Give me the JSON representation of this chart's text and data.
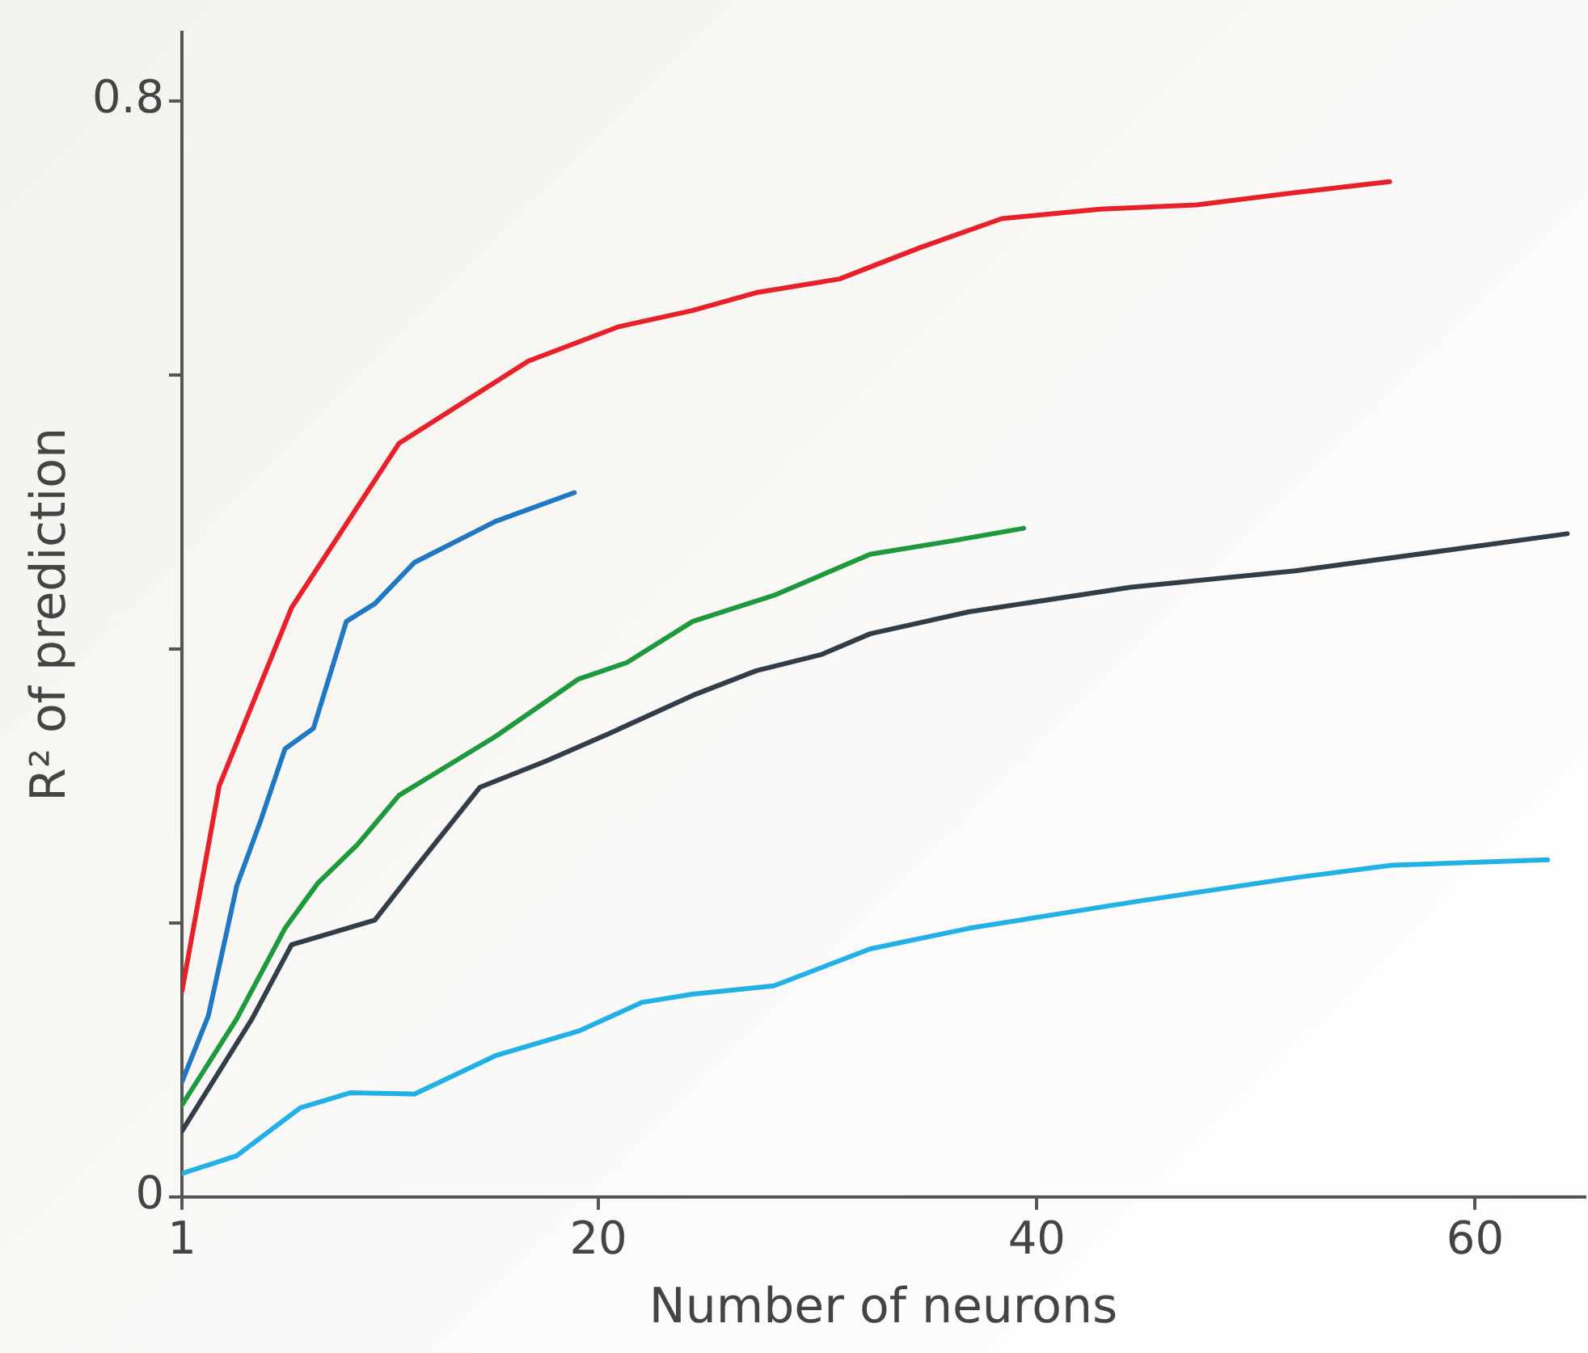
{
  "chart_data": {
    "type": "line",
    "xlabel": "Number of neurons",
    "ylabel": "R² of prediction",
    "xlim": [
      1,
      65
    ],
    "xticks": [
      1,
      20,
      40,
      60
    ],
    "ylim": [
      0,
      0.85
    ],
    "yticks": [
      0,
      {
        "value": 0.2,
        "label": null
      },
      {
        "value": 0.4,
        "label": null
      },
      {
        "value": 0.6,
        "label": null
      },
      0.8
    ],
    "grid": false,
    "legend": false,
    "marker": "none",
    "line_style": "solid",
    "series": [
      {
        "color": "#e8202a",
        "x": [
          1,
          2.7,
          6,
          10.9,
          16.8,
          20.9,
          24.3,
          27.2,
          31,
          34.7,
          38.4,
          42.9,
          47.3,
          51.8,
          56.1
        ],
        "values": [
          0.15,
          0.3,
          0.43,
          0.55,
          0.61,
          0.635,
          0.647,
          0.66,
          0.67,
          0.693,
          0.714,
          0.721,
          0.724,
          0.733,
          0.741
        ]
      },
      {
        "color": "#1f78c1",
        "x": [
          1,
          2.2,
          3.5,
          4.6,
          5.7,
          7,
          8.5,
          9.8,
          11.6,
          15.3,
          18.9
        ],
        "values": [
          0.084,
          0.132,
          0.227,
          0.275,
          0.327,
          0.342,
          0.42,
          0.433,
          0.463,
          0.493,
          0.514
        ]
      },
      {
        "color": "#1e9a3c",
        "x": [
          1,
          3.5,
          5.7,
          7.2,
          9,
          10.9,
          15.3,
          19.1,
          21.3,
          24.3,
          28,
          32.4,
          36.2,
          39.4
        ],
        "values": [
          0.067,
          0.13,
          0.196,
          0.229,
          0.257,
          0.293,
          0.336,
          0.378,
          0.39,
          0.42,
          0.439,
          0.469,
          0.479,
          0.488
        ]
      },
      {
        "color": "#333d47",
        "x": [
          1,
          4.2,
          6,
          9.8,
          11.6,
          14.6,
          17.6,
          20.6,
          24.3,
          27.2,
          30.2,
          32.4,
          36.9,
          44.3,
          51.8,
          59.2,
          64.2
        ],
        "values": [
          0.048,
          0.13,
          0.184,
          0.202,
          0.239,
          0.299,
          0.318,
          0.339,
          0.366,
          0.384,
          0.396,
          0.411,
          0.427,
          0.445,
          0.457,
          0.473,
          0.484
        ]
      },
      {
        "color": "#22b1e6",
        "x": [
          1,
          3.5,
          6.4,
          8.7,
          11.6,
          15.3,
          19.1,
          22,
          24.3,
          28,
          32.4,
          36.9,
          44.3,
          51.8,
          56.2,
          63.3
        ],
        "values": [
          0.017,
          0.03,
          0.065,
          0.076,
          0.075,
          0.103,
          0.121,
          0.142,
          0.148,
          0.154,
          0.181,
          0.196,
          0.215,
          0.233,
          0.242,
          0.246
        ]
      }
    ]
  }
}
